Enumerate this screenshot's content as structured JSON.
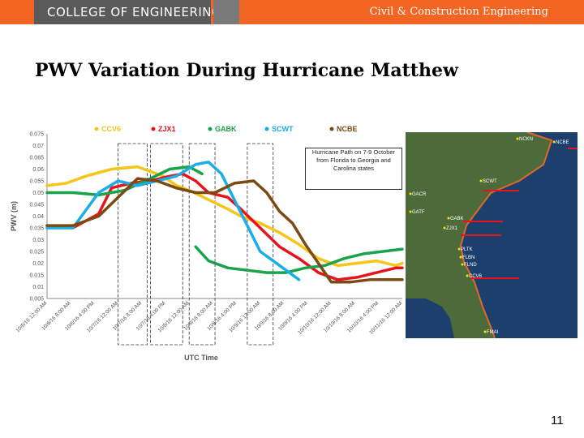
{
  "header": {
    "logo_text": "COLLEGE OF ENGINEERING",
    "department": "Civil & Construction Engineering",
    "brand_color": "#f26522"
  },
  "slide": {
    "title": "PWV Variation During Hurricane Matthew",
    "page_number": "11"
  },
  "chart_data": {
    "type": "line",
    "xlabel": "UTC Time",
    "ylabel": "PWV (m)",
    "ylim": [
      0.005,
      0.075
    ],
    "yticks": [
      "0.075",
      "0.07",
      "0.065",
      "0.06",
      "0.055",
      "0.05",
      "0.045",
      "0.04",
      "0.035",
      "0.03",
      "0.025",
      "0.02",
      "0.015",
      "0.01",
      "0.005"
    ],
    "xlim": [
      0,
      5.5
    ],
    "categories": [
      "10/6/16 12:00 AM",
      "10/6/16 8:00 AM",
      "10/6/16 4:00 PM",
      "10/7/16 12:00 AM",
      "10/7/16 8:00 AM",
      "10/7/16 4:00 PM",
      "10/8/16 12:00 AM",
      "10/8/16 8:00 AM",
      "10/8/16 4:00 PM",
      "10/9/16 12:00 AM",
      "10/9/16 8:00 AM",
      "10/9/16 4:00 PM",
      "10/10/16 12:00 AM",
      "10/10/16 8:00 AM",
      "10/10/16 4:00 PM",
      "10/11/16 12:00 AM"
    ],
    "annotation": "Hurricane Path on 7-9 October from Florida to Georgia and Carolina states",
    "series": [
      {
        "name": "CCV6",
        "color": "#f5c518",
        "x": [
          0,
          0.3,
          0.6,
          1.0,
          1.4,
          1.6,
          1.8,
          2.0,
          2.2,
          2.5,
          2.8,
          3.0,
          3.3,
          3.6,
          3.9,
          4.2,
          4.5,
          4.8,
          5.1,
          5.4,
          5.5
        ],
        "y": [
          0.053,
          0.054,
          0.057,
          0.06,
          0.061,
          0.059,
          0.057,
          0.053,
          0.051,
          0.047,
          0.043,
          0.04,
          0.037,
          0.033,
          0.028,
          0.022,
          0.019,
          0.02,
          0.021,
          0.019,
          0.02
        ]
      },
      {
        "name": "ZJX1",
        "color": "#e8141b",
        "x": [
          0,
          0.4,
          0.8,
          1.0,
          1.3,
          1.6,
          1.9,
          2.1,
          2.3,
          2.5,
          2.8,
          3.0,
          3.3,
          3.6,
          3.9,
          4.2,
          4.5,
          4.8,
          5.1,
          5.4,
          5.5
        ],
        "y": [
          0.036,
          0.035,
          0.041,
          0.052,
          0.054,
          0.055,
          0.057,
          0.058,
          0.055,
          0.05,
          0.048,
          0.043,
          0.035,
          0.027,
          0.022,
          0.016,
          0.013,
          0.014,
          0.016,
          0.018,
          0.018
        ]
      },
      {
        "name": "GABK",
        "color": "#1aa34a",
        "x": [
          0,
          0.4,
          0.8,
          1.2,
          1.6,
          1.9,
          2.2,
          2.4
        ],
        "y": [
          0.05,
          0.05,
          0.049,
          0.051,
          0.056,
          0.06,
          0.061,
          0.058
        ]
      },
      {
        "name": "GABK",
        "color": "#1aa34a",
        "x": [
          2.3,
          2.5,
          2.8,
          3.1,
          3.4,
          3.7,
          4.0,
          4.3,
          4.6,
          4.9,
          5.2,
          5.5
        ],
        "y": [
          0.027,
          0.021,
          0.018,
          0.017,
          0.016,
          0.016,
          0.018,
          0.019,
          0.022,
          0.024,
          0.025,
          0.026
        ]
      },
      {
        "name": "SCWT",
        "color": "#19aee6",
        "x": [
          0,
          0.4,
          0.8,
          1.1,
          1.4,
          1.7,
          2.0,
          2.3,
          2.5,
          2.7,
          2.9,
          3.1,
          3.3,
          3.5,
          3.7,
          3.9
        ],
        "y": [
          0.035,
          0.035,
          0.05,
          0.055,
          0.053,
          0.055,
          0.057,
          0.062,
          0.063,
          0.058,
          0.047,
          0.036,
          0.025,
          0.021,
          0.017,
          0.013
        ]
      },
      {
        "name": "NCBE",
        "color": "#7b4a12",
        "x": [
          0,
          0.4,
          0.8,
          1.1,
          1.4,
          1.7,
          2.0,
          2.3,
          2.6,
          2.9,
          3.2,
          3.4,
          3.6,
          3.8,
          4.0,
          4.2,
          4.4,
          4.7,
          5.0,
          5.3,
          5.5
        ],
        "y": [
          0.036,
          0.036,
          0.04,
          0.048,
          0.056,
          0.055,
          0.052,
          0.05,
          0.05,
          0.054,
          0.055,
          0.05,
          0.042,
          0.037,
          0.028,
          0.02,
          0.012,
          0.012,
          0.013,
          0.013,
          0.013
        ]
      }
    ]
  },
  "map": {
    "labels": [
      "NCKN",
      "NCBE",
      "SCWT",
      "GACR",
      "GATF",
      "GABK",
      "ZJX1",
      "PLTK",
      "FLBN",
      "FLND",
      "CCV6",
      "FMAI"
    ]
  }
}
